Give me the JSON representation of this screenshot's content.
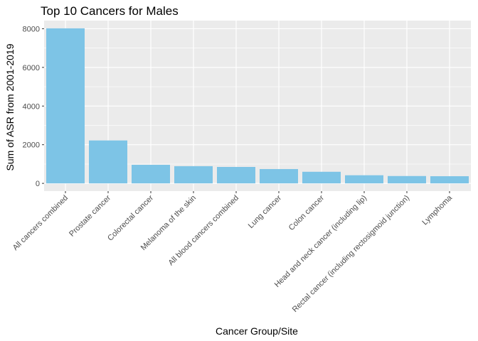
{
  "chart_data": {
    "type": "bar",
    "title": "Top 10 Cancers for Males",
    "xlabel": "Cancer Group/Site",
    "ylabel": "Sum of ASR from 2001-2019",
    "categories": [
      "All cancers combined",
      "Prostate cancer",
      "Colorectal cancer",
      "Melanoma of the skin",
      "All blood cancers combined",
      "Lung cancer",
      "Colon cancer",
      "Head and neck cancer (including lip)",
      "Rectal cancer (including rectosigmoid junction)",
      "Lymphoma"
    ],
    "values": [
      8020,
      2220,
      960,
      890,
      850,
      740,
      600,
      420,
      380,
      370
    ],
    "yticks": [
      0,
      2000,
      4000,
      6000,
      8000
    ],
    "ytick_labels": [
      "0",
      "2000",
      "4000",
      "6000",
      "8000"
    ],
    "ylim": [
      -400,
      8420
    ],
    "bar_color": "#7dc4e6",
    "panel_background": "#ebebeb",
    "grid_color": "#ffffff",
    "grid": true,
    "legend": "none"
  }
}
